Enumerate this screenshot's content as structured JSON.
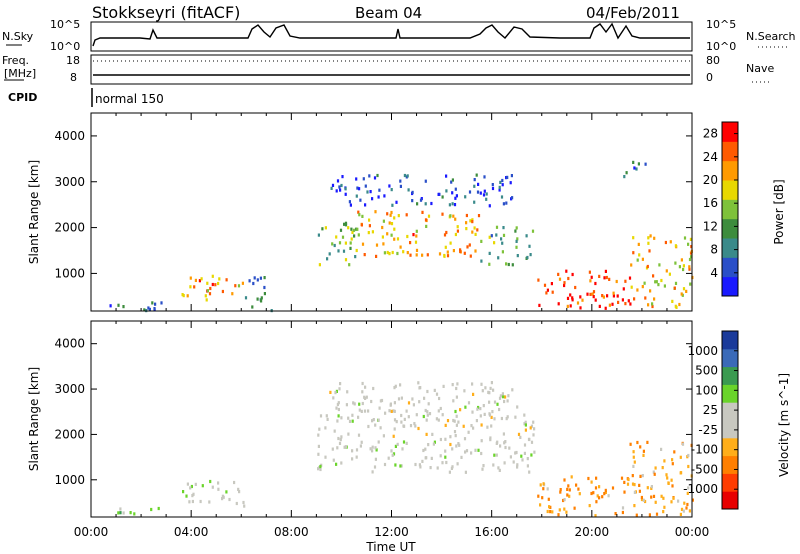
{
  "header": {
    "station": "Stokkseyri (fitACF)",
    "beam": "Beam 04",
    "date": "04/Feb/2011"
  },
  "top_panel": {
    "left_label": "N.Sky",
    "left_ticks": [
      "10^5",
      "10^0"
    ],
    "right_ticks": [
      "10^5",
      "10^0"
    ],
    "right_label": "N.Search"
  },
  "freq_panel": {
    "left_label_1": "Freq.",
    "left_label_2": "[MHz]",
    "left_ticks": [
      "18",
      "8"
    ],
    "right_ticks": [
      "80",
      "0"
    ],
    "right_label": "Nave"
  },
  "cpid_panel": {
    "label": "CPID",
    "mode": "normal 150"
  },
  "colors": {
    "power": [
      "#1a1aff",
      "#2a4fc8",
      "#3a8a8a",
      "#3d8c3d",
      "#7ec23a",
      "#e8d800",
      "#ff9a00",
      "#ff5a00",
      "#ff0000"
    ],
    "velocity": [
      "#e80000",
      "#ff3c00",
      "#ff7f00",
      "#ffae1a",
      "#c8c8c0",
      "#c8c8c0",
      "#6ad42a",
      "#3a9a50",
      "#3a6ab8",
      "#1a3a9a"
    ]
  },
  "chart_data": [
    {
      "type": "heatmap",
      "title": "",
      "xlabel": "",
      "ylabel": "Slant Range [km]",
      "x_ticks": [
        "00:00",
        "04:00",
        "08:00",
        "12:00",
        "16:00",
        "20:00",
        "00:00"
      ],
      "xlim_hours": [
        0,
        24
      ],
      "ylim_km": [
        180,
        4500
      ],
      "y_ticks": [
        "1000",
        "2000",
        "3000",
        "4000"
      ],
      "colorbar_label": "Power [dB]",
      "colorbar_ticks": [
        "4",
        "8",
        "12",
        "16",
        "20",
        "24",
        "28"
      ],
      "clim": [
        0,
        30
      ],
      "regions": [
        {
          "t": [
            0.2,
            3.0
          ],
          "r": [
            200,
            420
          ],
          "level": 6
        },
        {
          "t": [
            3.6,
            6.1
          ],
          "r": [
            400,
            1000
          ],
          "level": 22
        },
        {
          "t": [
            6.1,
            7.2
          ],
          "r": [
            200,
            950
          ],
          "level": 8
        },
        {
          "t": [
            9.0,
            10.7
          ],
          "r": [
            1200,
            2200
          ],
          "level": 14
        },
        {
          "t": [
            10.5,
            15.5
          ],
          "r": [
            1400,
            2400
          ],
          "level": 21
        },
        {
          "t": [
            15.5,
            17.7
          ],
          "r": [
            1200,
            2100
          ],
          "level": 12
        },
        {
          "t": [
            9.5,
            17.0
          ],
          "r": [
            2500,
            3200
          ],
          "level": 5
        },
        {
          "t": [
            17.8,
            21.5
          ],
          "r": [
            220,
            1100
          ],
          "level": 27
        },
        {
          "t": [
            21.5,
            24.0
          ],
          "r": [
            250,
            1900
          ],
          "level": 20
        },
        {
          "t": [
            21.2,
            22.2
          ],
          "r": [
            3100,
            3500
          ],
          "level": 6
        }
      ]
    },
    {
      "type": "heatmap",
      "title": "",
      "xlabel": "Time UT",
      "ylabel": "Slant Range [km]",
      "x_ticks": [
        "00:00",
        "04:00",
        "08:00",
        "12:00",
        "16:00",
        "20:00",
        "00:00"
      ],
      "xlim_hours": [
        0,
        24
      ],
      "ylim_km": [
        180,
        4500
      ],
      "y_ticks": [
        "1000",
        "2000",
        "3000",
        "4000"
      ],
      "colorbar_label": "Velocity [m s^-1]",
      "colorbar_ticks": [
        "1000",
        "500",
        "100",
        "25",
        "-25",
        "-100",
        "-500",
        "-1000"
      ],
      "regions": [
        {
          "t": [
            0.2,
            3.0
          ],
          "r": [
            200,
            420
          ],
          "v": 50
        },
        {
          "t": [
            3.6,
            6.1
          ],
          "r": [
            400,
            1000
          ],
          "v": 10
        },
        {
          "t": [
            9.0,
            17.7
          ],
          "r": [
            1200,
            2500
          ],
          "v": 0
        },
        {
          "t": [
            9.5,
            17.0
          ],
          "r": [
            2500,
            3200
          ],
          "v": 0
        },
        {
          "t": [
            17.8,
            21.5
          ],
          "r": [
            220,
            1100
          ],
          "v": -150
        },
        {
          "t": [
            21.5,
            24.0
          ],
          "r": [
            250,
            1900
          ],
          "v": -80
        }
      ]
    }
  ]
}
